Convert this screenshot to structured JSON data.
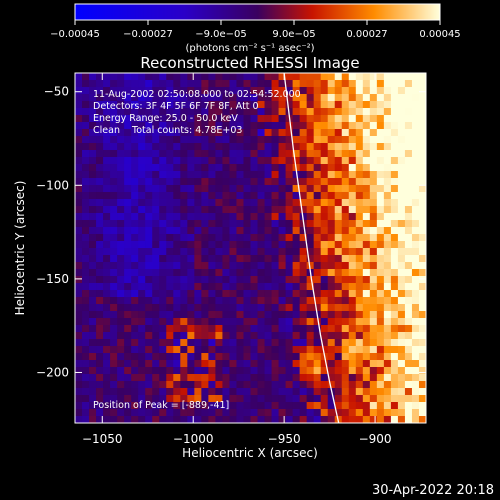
{
  "chart_data": {
    "type": "heatmap",
    "title": "Reconstructed RHESSI Image",
    "xlabel": "Heliocentric X (arcsec)",
    "ylabel": "Heliocentric Y (arcsec)",
    "xlim": [
      -1065,
      -872
    ],
    "ylim": [
      -227,
      -40
    ],
    "x_ticks": [
      {
        "value": -1050,
        "label": "−1050"
      },
      {
        "value": -1000,
        "label": "−1000"
      },
      {
        "value": -950,
        "label": "−950"
      },
      {
        "value": -900,
        "label": "−900"
      }
    ],
    "y_ticks": [
      {
        "value": -50,
        "label": "−50"
      },
      {
        "value": -100,
        "label": "−100"
      },
      {
        "value": -150,
        "label": "−150"
      },
      {
        "value": -200,
        "label": "−200"
      }
    ],
    "colorbar": {
      "range": [
        -0.00045,
        0.00045
      ],
      "unit_label": "(photons cm⁻² s⁻¹ asec⁻²)",
      "ticks": [
        {
          "value": -0.00045,
          "label": "−0.00045"
        },
        {
          "value": -0.00027,
          "label": "−0.00027"
        },
        {
          "value": -9e-05,
          "label": "−9.0e−05"
        },
        {
          "value": 9e-05,
          "label": "9.0e−05"
        },
        {
          "value": 0.00027,
          "label": "0.00027"
        },
        {
          "value": 0.00045,
          "label": "0.00045"
        }
      ]
    },
    "annotations": [
      "11-Aug-2002 02:50:08.000 to 02:54:52.000",
      "Detectors: 3F 4F 5F 6F 7F 8F, Att 0",
      "Energy Range: 25.0 - 50.0 keV",
      "Clean    Total counts: 4.78E+03"
    ],
    "peak_label": "Position of Peak = [-889,-41]",
    "limb_x": [
      -950,
      -945,
      -940,
      -935,
      -930,
      -925,
      -920
    ],
    "limb_y": [
      -40,
      -80,
      -115,
      -150,
      -180,
      -205,
      -227
    ],
    "colors": {
      "negative": "#0000ff",
      "zero": "#3a0060",
      "mid": "#c81400",
      "high": "#ff8c00",
      "max": "#ffffdc",
      "limb": "#ffffff"
    }
  },
  "footer": {
    "date": "30-Apr-2022 20:18"
  }
}
